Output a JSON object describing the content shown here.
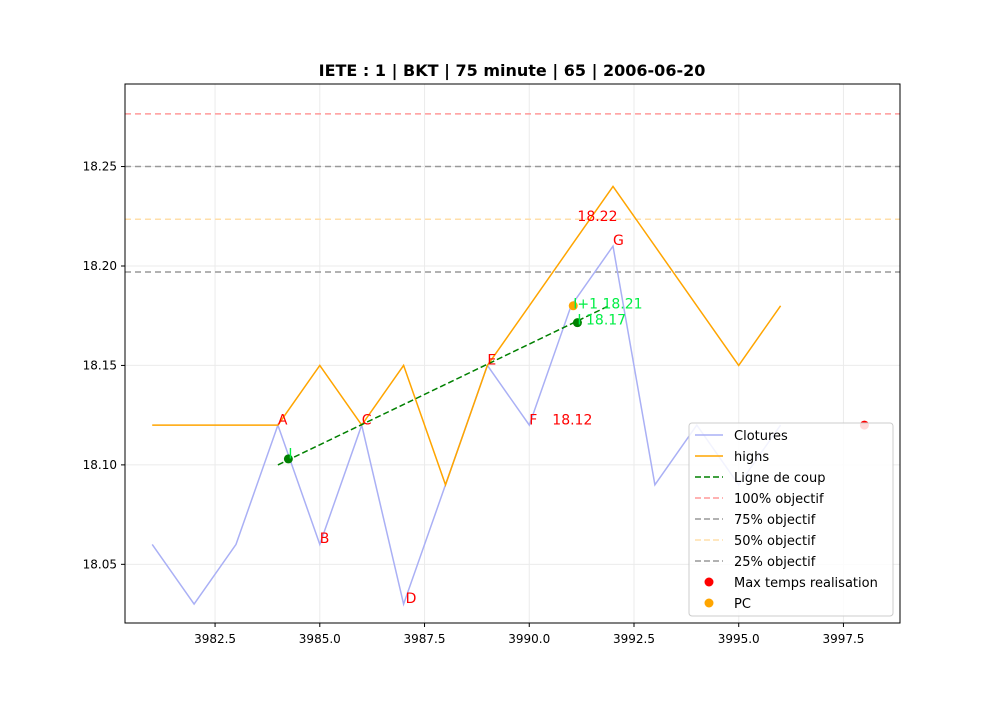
{
  "chart_data": {
    "type": "line",
    "title": "IETE : 1 | BKT | 75 minute | 65 | 2006-06-20",
    "xlabel": "",
    "ylabel": "",
    "xlim": [
      3980.35,
      3998.85
    ],
    "ylim": [
      18.0205,
      18.2915
    ],
    "xticks": [
      3982.5,
      3985.0,
      3987.5,
      3990.0,
      3992.5,
      3995.0,
      3997.5
    ],
    "xtick_labels": [
      "3982.5",
      "3985.0",
      "3987.5",
      "3990.0",
      "3992.5",
      "3995.0",
      "3997.5"
    ],
    "yticks": [
      18.05,
      18.1,
      18.15,
      18.2,
      18.25
    ],
    "ytick_labels": [
      "18.05",
      "18.10",
      "18.15",
      "18.20",
      "18.25"
    ],
    "grid": true,
    "legend_position": "lower-right",
    "series": [
      {
        "name": "Clotures",
        "kind": "line",
        "color": "#aab0f5",
        "x": [
          3981,
          3982,
          3983,
          3984,
          3985,
          3986,
          3987,
          3988,
          3989,
          3990,
          3991,
          3992,
          3993,
          3994,
          3995,
          3996
        ],
        "y": [
          18.06,
          18.03,
          18.06,
          18.12,
          18.06,
          18.12,
          18.03,
          18.09,
          18.15,
          18.12,
          18.18,
          18.21,
          18.09,
          18.12,
          18.09,
          18.12
        ]
      },
      {
        "name": "highs",
        "kind": "line",
        "color": "#ffa500",
        "x": [
          3981,
          3982,
          3983,
          3984,
          3985,
          3986,
          3987,
          3988,
          3989,
          3990,
          3991,
          3992,
          3993,
          3994,
          3995,
          3996
        ],
        "y": [
          18.12,
          18.12,
          18.12,
          18.12,
          18.15,
          18.12,
          18.15,
          18.09,
          18.15,
          18.18,
          18.21,
          18.24,
          18.21,
          18.18,
          18.15,
          18.18
        ]
      },
      {
        "name": "Ligne de coup",
        "kind": "dashed-line",
        "color": "#008000",
        "x": [
          3984,
          3991.9
        ],
        "y": [
          18.1,
          18.18
        ]
      },
      {
        "name": "100% objectif",
        "kind": "hline",
        "color": "#ff9999",
        "y": 18.2765
      },
      {
        "name": "75% objectif",
        "kind": "hline",
        "color": "#999999",
        "y": 18.25
      },
      {
        "name": "50% objectif",
        "kind": "hline",
        "color": "#ffdfaa",
        "y": 18.2235
      },
      {
        "name": "25% objectif",
        "kind": "hline",
        "color": "#999999",
        "y": 18.197
      },
      {
        "name": "Max temps realisation",
        "kind": "scatter",
        "color": "#ff0000",
        "points": [
          {
            "x": 3998,
            "y": 18.12
          }
        ]
      },
      {
        "name": "PC",
        "kind": "scatter",
        "color": "#ffa500",
        "points": [
          {
            "x": 3991.05,
            "y": 18.18
          }
        ]
      }
    ],
    "extra_points": [
      {
        "x": 3984.25,
        "y": 18.103,
        "color": "#008000"
      },
      {
        "x": 3991.15,
        "y": 18.1715,
        "color": "#008000"
      }
    ],
    "annotations": [
      {
        "text": "A",
        "x": 3984.0,
        "y": 18.1203,
        "color": "#ff0000"
      },
      {
        "text": "B",
        "x": 3985.0,
        "y": 18.0608,
        "color": "#ff0000"
      },
      {
        "text": "C",
        "x": 3986.0,
        "y": 18.1203,
        "color": "#ff0000"
      },
      {
        "text": "D",
        "x": 3987.05,
        "y": 18.0305,
        "color": "#ff0000"
      },
      {
        "text": "E",
        "x": 3989.0,
        "y": 18.1505,
        "color": "#ff0000"
      },
      {
        "text": "F",
        "x": 3990.0,
        "y": 18.1203,
        "color": "#ff0000"
      },
      {
        "text": "18.12",
        "x": 3990.55,
        "y": 18.1203,
        "color": "#ff0000"
      },
      {
        "text": "G",
        "x": 3992.0,
        "y": 18.2106,
        "color": "#ff0000"
      },
      {
        "text": "18.22",
        "x": 3991.15,
        "y": 18.2227,
        "color": "#ff0000"
      },
      {
        "text": "I",
        "x": 3984.25,
        "y": 18.1032,
        "color": "#00ee44"
      },
      {
        "text": "I+1 18.21",
        "x": 3991.05,
        "y": 18.1787,
        "color": "#00ee44"
      },
      {
        "text": "I 18.17",
        "x": 3991.15,
        "y": 18.1705,
        "color": "#00ee44"
      }
    ]
  }
}
